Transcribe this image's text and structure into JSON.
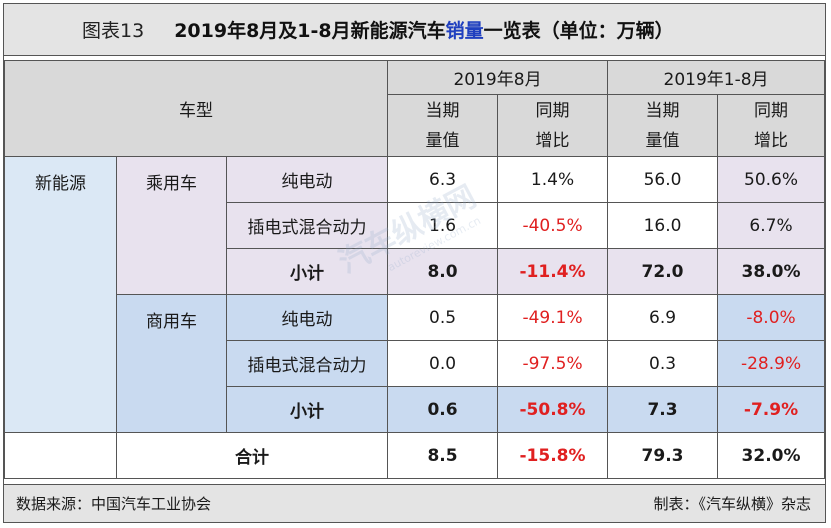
{
  "title": {
    "prefix": "图表13",
    "main_before": "2019年8月及1-8月新能源汽车",
    "main_highlight": "销量",
    "main_after": "一览表（单位：万辆）"
  },
  "header": {
    "vehicle_type": "车型",
    "period_month": "2019年8月",
    "period_ytd": "2019年1-8月",
    "col_current_line1": "当期",
    "col_current_line2": "量值",
    "col_yoy_line1": "同期",
    "col_yoy_line2": "增比"
  },
  "rows": {
    "category": "新能源",
    "passenger": {
      "label": "乘用车",
      "bev": {
        "label": "纯电动",
        "m_val": "6.3",
        "m_yoy": "1.4%",
        "y_val": "56.0",
        "y_yoy": "50.6%"
      },
      "phev": {
        "label": "插电式混合动力",
        "m_val": "1.6",
        "m_yoy": "-40.5%",
        "y_val": "16.0",
        "y_yoy": "6.7%"
      },
      "subtotal": {
        "label": "小计",
        "m_val": "8.0",
        "m_yoy": "-11.4%",
        "y_val": "72.0",
        "y_yoy": "38.0%"
      }
    },
    "commercial": {
      "label": "商用车",
      "bev": {
        "label": "纯电动",
        "m_val": "0.5",
        "m_yoy": "-49.1%",
        "y_val": "6.9",
        "y_yoy": "-8.0%"
      },
      "phev": {
        "label": "插电式混合动力",
        "m_val": "0.0",
        "m_yoy": "-97.5%",
        "y_val": "0.3",
        "y_yoy": "-28.9%"
      },
      "subtotal": {
        "label": "小计",
        "m_val": "0.6",
        "m_yoy": "-50.8%",
        "y_val": "7.3",
        "y_yoy": "-7.9%"
      }
    },
    "total": {
      "label": "合计",
      "m_val": "8.5",
      "m_yoy": "-15.8%",
      "y_val": "79.3",
      "y_yoy": "32.0%"
    }
  },
  "watermark": {
    "main": "汽车纵横网",
    "sub": "autoreview.com.cn"
  },
  "footer": {
    "source": "数据来源：中国汽车工业协会",
    "maker": "制表：《汽车纵横》杂志"
  },
  "colors": {
    "negative": "#e02020",
    "title_highlight": "#1f3fbf",
    "header_bg": "#d9d9d9",
    "category_bg": "#dbe8f5",
    "passenger_bg": "#e8e2ee",
    "commercial_bg": "#c9daf0"
  }
}
